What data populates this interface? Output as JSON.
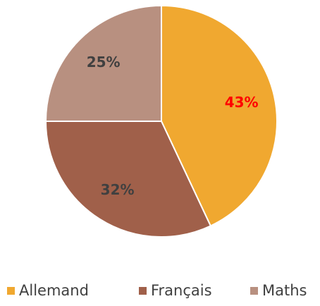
{
  "chart_data": {
    "type": "pie",
    "categories": [
      "Allemand",
      "Français",
      "Maths"
    ],
    "values": [
      43,
      32,
      25
    ],
    "value_labels": [
      "43%",
      "32%",
      "25%"
    ],
    "colors": [
      "#f0a830",
      "#a0604a",
      "#b89080"
    ],
    "label_colors": [
      "#ff0000",
      "#404040",
      "#404040"
    ],
    "legend": "bottom"
  }
}
